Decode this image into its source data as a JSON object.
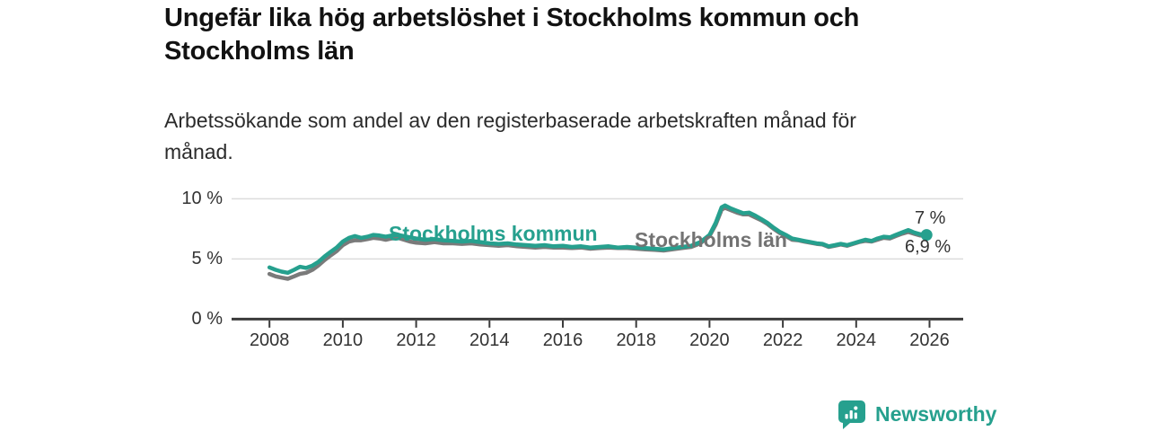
{
  "header": {
    "title_lines": [
      "Ungefär lika hög arbetslöshet i Stockholms kommun och",
      "Stockholms län"
    ],
    "subtitle_lines": [
      "Arbetssökande som andel av den registerbaserade arbetskraften månad för",
      "månad."
    ]
  },
  "chart_data": {
    "type": "line",
    "title": "Ungefär lika hög arbetslöshet i Stockholms kommun och Stockholms län",
    "subtitle": "Arbetssökande som andel av den registerbaserade arbetskraften månad för månad.",
    "xlabel": "",
    "ylabel": "",
    "ylim": [
      0,
      10.5
    ],
    "xlim": [
      2007.7,
      2026.3
    ],
    "grid": "horizontal",
    "legend_position": "inline-labels",
    "colors": {
      "accent_teal": "#26a08e",
      "gray_line": "#7a7a7a",
      "axis": "#3b3b3b",
      "gridline": "#dcdcdc",
      "tick_text": "#333333"
    },
    "y_ticks": [
      {
        "value": 0,
        "label": "0 %"
      },
      {
        "value": 5,
        "label": "5 %"
      },
      {
        "value": 10,
        "label": "10 %"
      }
    ],
    "x_ticks": [
      {
        "value": 2008,
        "label": "2008"
      },
      {
        "value": 2010,
        "label": "2010"
      },
      {
        "value": 2012,
        "label": "2012"
      },
      {
        "value": 2014,
        "label": "2014"
      },
      {
        "value": 2016,
        "label": "2016"
      },
      {
        "value": 2018,
        "label": "2018"
      },
      {
        "value": 2020,
        "label": "2020"
      },
      {
        "value": 2022,
        "label": "2022"
      },
      {
        "value": 2024,
        "label": "2024"
      },
      {
        "value": 2026,
        "label": "2026"
      }
    ],
    "x": [
      2008.0,
      2008.17,
      2008.33,
      2008.5,
      2008.67,
      2008.83,
      2009.0,
      2009.17,
      2009.33,
      2009.5,
      2009.67,
      2009.83,
      2010.0,
      2010.17,
      2010.33,
      2010.5,
      2010.67,
      2010.83,
      2011.0,
      2011.17,
      2011.33,
      2011.5,
      2011.67,
      2011.83,
      2012.0,
      2012.25,
      2012.5,
      2012.75,
      2013.0,
      2013.25,
      2013.5,
      2013.75,
      2014.0,
      2014.25,
      2014.5,
      2014.75,
      2015.0,
      2015.25,
      2015.5,
      2015.75,
      2016.0,
      2016.25,
      2016.5,
      2016.75,
      2017.0,
      2017.25,
      2017.5,
      2017.75,
      2018.0,
      2018.25,
      2018.5,
      2018.75,
      2019.0,
      2019.25,
      2019.5,
      2019.75,
      2020.0,
      2020.17,
      2020.33,
      2020.42,
      2020.58,
      2020.75,
      2020.92,
      2021.08,
      2021.25,
      2021.42,
      2021.58,
      2021.75,
      2021.92,
      2022.08,
      2022.25,
      2022.42,
      2022.58,
      2022.75,
      2022.92,
      2023.08,
      2023.25,
      2023.42,
      2023.58,
      2023.75,
      2023.92,
      2024.08,
      2024.25,
      2024.42,
      2024.58,
      2024.75,
      2024.92,
      2025.08,
      2025.25,
      2025.42,
      2025.58,
      2025.75,
      2025.92
    ],
    "series": [
      {
        "name": "Stockholms kommun",
        "color": "#26a08e",
        "end_label": "7 %",
        "end_dot": true,
        "values": [
          4.3,
          4.1,
          3.95,
          3.85,
          4.1,
          4.35,
          4.25,
          4.45,
          4.75,
          5.2,
          5.6,
          5.95,
          6.45,
          6.75,
          6.9,
          6.75,
          6.85,
          7.0,
          6.95,
          6.85,
          6.95,
          7.0,
          6.9,
          6.8,
          6.7,
          6.6,
          6.65,
          6.55,
          6.5,
          6.45,
          6.5,
          6.4,
          6.3,
          6.25,
          6.3,
          6.2,
          6.15,
          6.1,
          6.15,
          6.05,
          6.1,
          6.0,
          6.05,
          5.95,
          6.0,
          6.05,
          5.95,
          6.0,
          5.95,
          5.9,
          5.85,
          5.8,
          5.9,
          6.0,
          6.1,
          6.4,
          7.0,
          8.0,
          9.3,
          9.45,
          9.2,
          9.0,
          8.8,
          8.85,
          8.6,
          8.3,
          8.0,
          7.6,
          7.25,
          7.0,
          6.7,
          6.6,
          6.5,
          6.4,
          6.3,
          6.25,
          6.05,
          6.15,
          6.25,
          6.15,
          6.3,
          6.45,
          6.6,
          6.5,
          6.7,
          6.85,
          6.8,
          7.0,
          7.2,
          7.4,
          7.2,
          7.05,
          7.0
        ]
      },
      {
        "name": "Stockholms län",
        "color": "#7a7a7a",
        "end_label": "6,9 %",
        "end_dot": false,
        "values": [
          3.75,
          3.55,
          3.45,
          3.35,
          3.55,
          3.75,
          3.85,
          4.1,
          4.45,
          4.9,
          5.3,
          5.65,
          6.15,
          6.45,
          6.55,
          6.55,
          6.65,
          6.75,
          6.7,
          6.6,
          6.7,
          6.75,
          6.6,
          6.45,
          6.35,
          6.3,
          6.4,
          6.3,
          6.3,
          6.25,
          6.3,
          6.2,
          6.15,
          6.1,
          6.15,
          6.05,
          6.0,
          5.95,
          6.0,
          5.95,
          5.95,
          5.9,
          5.95,
          5.85,
          5.9,
          5.95,
          5.9,
          5.9,
          5.85,
          5.8,
          5.75,
          5.7,
          5.8,
          5.9,
          6.0,
          6.3,
          6.9,
          7.85,
          9.1,
          9.25,
          9.05,
          8.85,
          8.7,
          8.7,
          8.45,
          8.2,
          7.9,
          7.5,
          7.15,
          6.9,
          6.6,
          6.55,
          6.45,
          6.35,
          6.25,
          6.2,
          6.0,
          6.1,
          6.2,
          6.1,
          6.25,
          6.4,
          6.5,
          6.45,
          6.6,
          6.75,
          6.7,
          6.9,
          7.1,
          7.25,
          7.1,
          6.95,
          6.9
        ]
      }
    ]
  },
  "footer": {
    "brand": "Newsworthy",
    "brand_color": "#26a08e",
    "logo_icon": "newsworthy-chart-bubble-icon"
  }
}
